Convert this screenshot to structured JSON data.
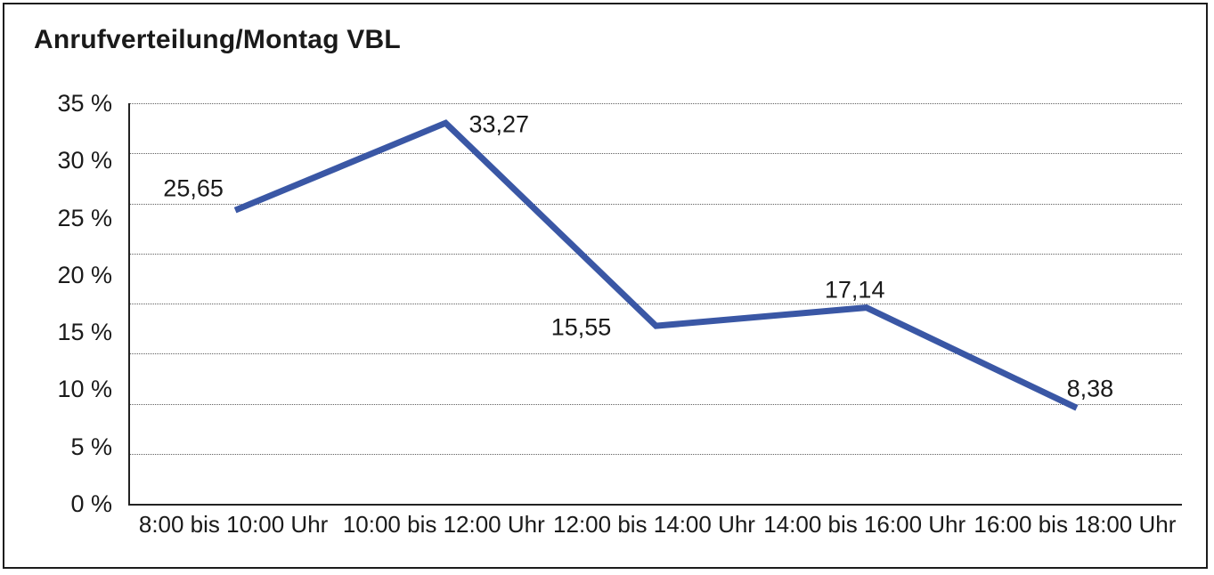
{
  "title": "Anrufverteilung/Montag VBL",
  "chart_data": {
    "type": "line",
    "title": "Anrufverteilung/Montag VBL",
    "categories": [
      "8:00 bis 10:00 Uhr",
      "10:00 bis 12:00 Uhr",
      "12:00 bis 14:00 Uhr",
      "14:00 bis 16:00 Uhr",
      "16:00 bis 18:00 Uhr"
    ],
    "values": [
      25.65,
      33.27,
      15.55,
      17.14,
      8.38
    ],
    "value_labels": [
      "25,65",
      "33,27",
      "15,55",
      "17,14",
      "8,38"
    ],
    "xlabel": "",
    "ylabel": "",
    "ylim": [
      0,
      35
    ],
    "y_ticks": [
      {
        "value": 0,
        "label": "0 %"
      },
      {
        "value": 5,
        "label": "5 %"
      },
      {
        "value": 10,
        "label": "10 %"
      },
      {
        "value": 15,
        "label": "15 %"
      },
      {
        "value": 20,
        "label": "20 %"
      },
      {
        "value": 25,
        "label": "25 %"
      },
      {
        "value": 30,
        "label": "30 %"
      },
      {
        "value": 35,
        "label": "35 %"
      }
    ],
    "grid": "horizontal-dotted",
    "grid_divisions": 8,
    "legend": "none",
    "line_color": "#3A57A5",
    "text_color": "#1a1a1a"
  }
}
